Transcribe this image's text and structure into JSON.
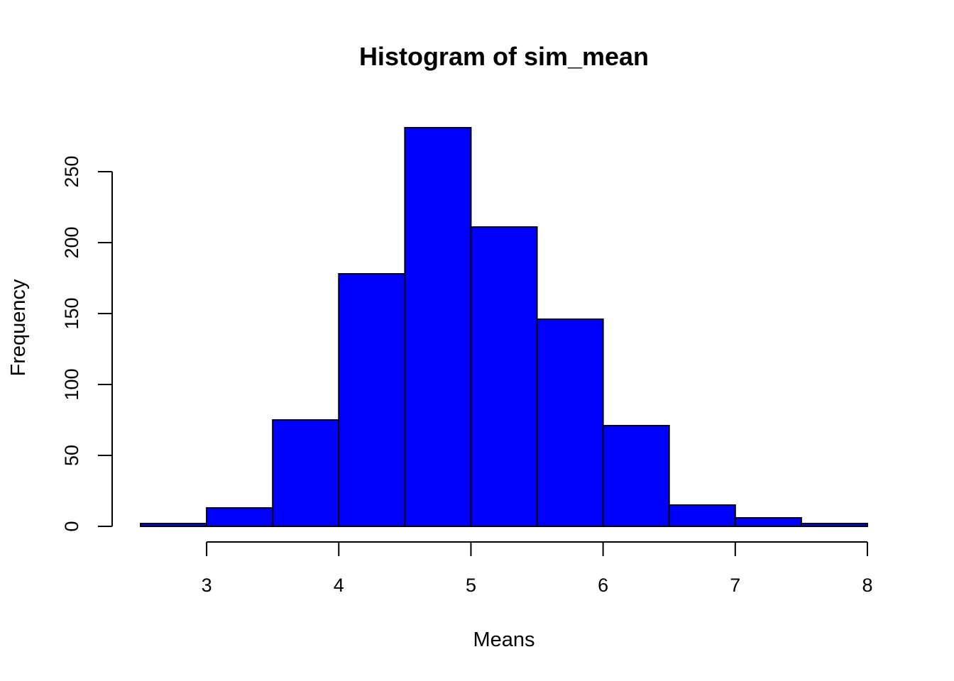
{
  "chart_data": {
    "type": "histogram",
    "title": "Histogram of sim_mean",
    "xlabel": "Means",
    "ylabel": "Frequency",
    "bar_color": "#0000ff",
    "edge_color": "#000000",
    "bins": [
      {
        "start": 2.5,
        "end": 3.0,
        "count": 2
      },
      {
        "start": 3.0,
        "end": 3.5,
        "count": 13
      },
      {
        "start": 3.5,
        "end": 4.0,
        "count": 75
      },
      {
        "start": 4.0,
        "end": 4.5,
        "count": 178
      },
      {
        "start": 4.5,
        "end": 5.0,
        "count": 281
      },
      {
        "start": 5.0,
        "end": 5.5,
        "count": 211
      },
      {
        "start": 5.5,
        "end": 6.0,
        "count": 146
      },
      {
        "start": 6.0,
        "end": 6.5,
        "count": 71
      },
      {
        "start": 6.5,
        "end": 7.0,
        "count": 15
      },
      {
        "start": 7.0,
        "end": 7.5,
        "count": 6
      },
      {
        "start": 7.5,
        "end": 8.0,
        "count": 2
      }
    ],
    "xticks": [
      3,
      4,
      5,
      6,
      7,
      8
    ],
    "yticks": [
      0,
      50,
      100,
      150,
      200,
      250
    ],
    "xlim": [
      2.5,
      8.0
    ],
    "ylim": [
      0,
      281
    ],
    "grid": false,
    "legend": "none"
  }
}
